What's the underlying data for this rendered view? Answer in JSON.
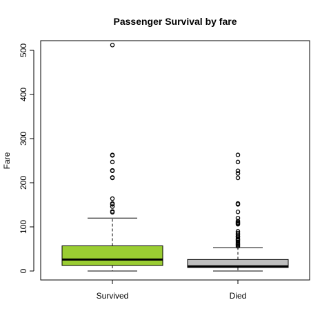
{
  "chart_data": {
    "type": "boxplot",
    "title": "Passenger Survival by fare",
    "xlabel": "",
    "ylabel": "Fare",
    "ylim": [
      -20,
      530
    ],
    "yticks": [
      0,
      100,
      200,
      300,
      400,
      500
    ],
    "categories": [
      "Survived",
      "Died"
    ],
    "boxes": [
      {
        "category": "Survived",
        "color": "#9acd32",
        "whisker_low": 0,
        "q1": 12.5,
        "median": 26,
        "q3": 57,
        "whisker_high": 120,
        "outliers": [
          133,
          135,
          146,
          151,
          153,
          164,
          211,
          212,
          227,
          228,
          247,
          262,
          263,
          512
        ]
      },
      {
        "category": "Died",
        "color": "#bebebe",
        "whisker_low": 0,
        "q1": 8,
        "median": 10.5,
        "q3": 26,
        "whisker_high": 53,
        "outliers": [
          56,
          59,
          61,
          63,
          66,
          69,
          71,
          73,
          77,
          79,
          82,
          86,
          90,
          106,
          108,
          110,
          113,
          120,
          134,
          151,
          153,
          211,
          221,
          227,
          247,
          263
        ]
      }
    ],
    "grid": false,
    "legend": "none"
  }
}
